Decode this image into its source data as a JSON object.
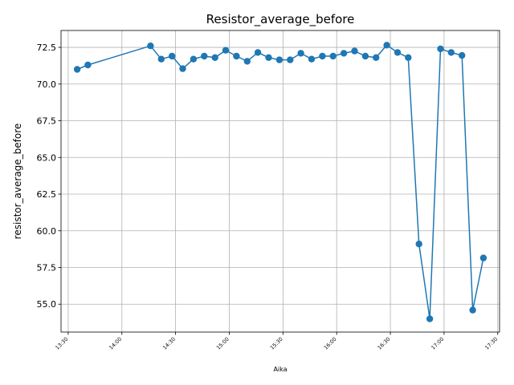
{
  "chart_data": {
    "type": "line",
    "title": "Resistor_average_before",
    "xlabel": "Aika",
    "ylabel": "resistor_average_before",
    "x_unit": "time",
    "x_range": [
      "13:26",
      "17:31"
    ],
    "ylim": [
      53.1,
      73.65
    ],
    "grid": true,
    "legend": "none",
    "color": "#1f77b4",
    "x_ticks": [
      "13:30",
      "14:00",
      "14:30",
      "15:00",
      "15:30",
      "16:00",
      "16:30",
      "17:00",
      "17:30"
    ],
    "y_ticks": [
      "55.0",
      "57.5",
      "60.0",
      "62.5",
      "65.0",
      "67.5",
      "70.0",
      "72.5"
    ],
    "series": [
      {
        "x": [
          "13:35",
          "13:41",
          "14:16",
          "14:22",
          "14:28",
          "14:34",
          "14:40",
          "14:46",
          "14:52",
          "14:58",
          "15:04",
          "15:10",
          "15:16",
          "15:22",
          "15:28",
          "15:34",
          "15:40",
          "15:46",
          "15:52",
          "15:58",
          "16:04",
          "16:10",
          "16:16",
          "16:22",
          "16:28",
          "16:34",
          "16:40",
          "16:46",
          "16:52",
          "16:58",
          "17:04",
          "17:10",
          "17:16",
          "17:22"
        ],
        "values": [
          71.0,
          71.3,
          72.6,
          71.7,
          71.9,
          71.05,
          71.7,
          71.9,
          71.8,
          72.3,
          71.9,
          71.55,
          72.15,
          71.8,
          71.65,
          71.65,
          72.1,
          71.7,
          71.9,
          71.9,
          72.1,
          72.25,
          71.9,
          71.8,
          72.65,
          72.15,
          71.8,
          59.1,
          54.0,
          72.4,
          72.15,
          71.95,
          54.6,
          58.15
        ]
      }
    ]
  }
}
